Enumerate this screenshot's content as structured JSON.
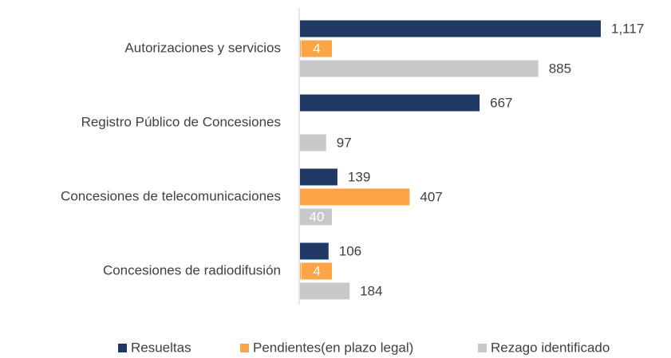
{
  "chart_data": {
    "type": "hbar",
    "categories": [
      "Autorizaciones y servicios",
      "Registro Público de Concesiones",
      "Concesiones de telecomunicaciones",
      "Concesiones de radiodifusión"
    ],
    "series": [
      {
        "name": "Resueltas",
        "color": "#1f3864",
        "values": [
          1117,
          667,
          139,
          106
        ],
        "value_labels": [
          "1,117",
          "667",
          "139",
          "106"
        ]
      },
      {
        "name": "Pendientes(en plazo legal)",
        "color": "#ffa347",
        "values": [
          4,
          null,
          407,
          4
        ]
      },
      {
        "name": "Rezago identificado",
        "color": "#c8c8c8",
        "values": [
          885,
          97,
          40,
          184
        ]
      }
    ],
    "legend": "bottom"
  }
}
